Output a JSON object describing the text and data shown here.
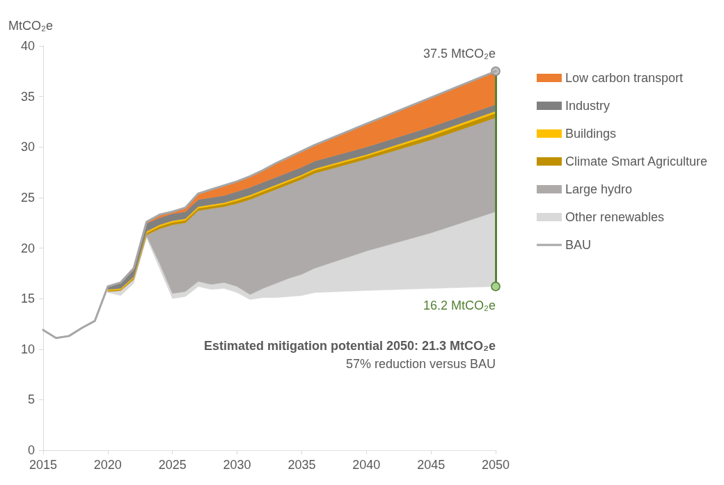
{
  "chart_data": {
    "type": "area",
    "stacked": true,
    "ylabel": "MtCO₂e",
    "xlim": [
      2015,
      2050
    ],
    "xticks": [
      2015,
      2020,
      2025,
      2030,
      2035,
      2040,
      2045,
      2050
    ],
    "ylim": [
      0,
      40
    ],
    "yticks": [
      0,
      5,
      10,
      15,
      20,
      25,
      30,
      35,
      40
    ],
    "grid": false,
    "legend": "right",
    "marker": "none",
    "x": [
      2020,
      2021,
      2022,
      2023,
      2024,
      2025,
      2026,
      2027,
      2028,
      2029,
      2030,
      2031,
      2032,
      2033,
      2034,
      2035,
      2036,
      2040,
      2045,
      2050
    ],
    "series": [
      {
        "color": "#ffffff",
        "values": [
          15.6,
          15.3,
          16.5,
          21.0,
          18.0,
          15.0,
          15.2,
          16.2,
          15.9,
          16.0,
          15.6,
          14.9,
          15.1,
          15.1,
          15.2,
          15.3,
          15.6,
          15.8,
          16.0,
          16.2
        ]
      },
      {
        "name": "Other renewables",
        "color": "#d9d9d9",
        "values": [
          0.1,
          0.5,
          0.4,
          0.2,
          0.5,
          0.5,
          0.5,
          0.5,
          0.5,
          0.6,
          0.6,
          0.5,
          0.9,
          1.4,
          1.8,
          2.1,
          2.4,
          3.9,
          5.5,
          7.4
        ]
      },
      {
        "name": "Large hydro",
        "color": "#aeaaaa",
        "values": [
          0,
          0,
          0,
          0.1,
          3.4,
          6.8,
          6.8,
          7.0,
          7.5,
          7.5,
          8.2,
          9.4,
          9.3,
          9.3,
          9.3,
          9.4,
          9.4,
          9.1,
          9.2,
          9.3
        ]
      },
      {
        "name": "Climate Smart Agriculture",
        "color": "#bf9000",
        "values": [
          0.1,
          0.1,
          0.15,
          0.2,
          0.25,
          0.25,
          0.25,
          0.25,
          0.25,
          0.25,
          0.3,
          0.3,
          0.3,
          0.3,
          0.3,
          0.3,
          0.3,
          0.3,
          0.4,
          0.45
        ]
      },
      {
        "name": "Buildings",
        "color": "#ffc000",
        "values": [
          0.1,
          0.1,
          0.1,
          0.15,
          0.15,
          0.15,
          0.15,
          0.15,
          0.15,
          0.15,
          0.15,
          0.15,
          0.15,
          0.15,
          0.15,
          0.15,
          0.15,
          0.15,
          0.2,
          0.2
        ]
      },
      {
        "name": "Industry",
        "color": "#808080",
        "values": [
          0.3,
          0.5,
          0.7,
          0.8,
          0.7,
          0.7,
          0.7,
          0.7,
          0.7,
          0.7,
          0.75,
          0.75,
          0.75,
          0.75,
          0.75,
          0.75,
          0.75,
          0.75,
          0.7,
          0.65
        ]
      },
      {
        "name": "Low carbon transport",
        "color": "#ed7d31",
        "values": [
          0,
          0.1,
          0.15,
          0.15,
          0.3,
          0.2,
          0.4,
          0.6,
          0.8,
          1.0,
          1.0,
          1.1,
          1.2,
          1.4,
          1.5,
          1.6,
          1.6,
          2.3,
          2.9,
          3.3
        ]
      },
      {
        "name": "BAU",
        "type": "line",
        "color": "#a6a6a6",
        "x": [
          2015,
          2016,
          2017,
          2018,
          2019,
          2020,
          2021,
          2022,
          2023,
          2024,
          2025,
          2026,
          2027,
          2028,
          2029,
          2030,
          2031,
          2032,
          2033,
          2034,
          2035,
          2036,
          2040,
          2045,
          2050
        ],
        "values": [
          11.9,
          11.1,
          11.3,
          12.1,
          12.8,
          16.2,
          16.6,
          18.0,
          22.6,
          23.3,
          23.6,
          24.0,
          25.4,
          25.8,
          26.2,
          26.6,
          27.1,
          27.7,
          28.4,
          29.0,
          29.6,
          30.2,
          32.3,
          34.9,
          37.5
        ]
      }
    ],
    "annotations": [
      {
        "text": "37.5 MtCO₂e",
        "x": 2050,
        "y": 37.5
      },
      {
        "text": "16.2 MtCO₂e",
        "x": 2050,
        "y": 16.2
      },
      "Estimated mitigation potential 2050: 21.3 MtCO₂e",
      "57% reduction versus BAU"
    ]
  }
}
